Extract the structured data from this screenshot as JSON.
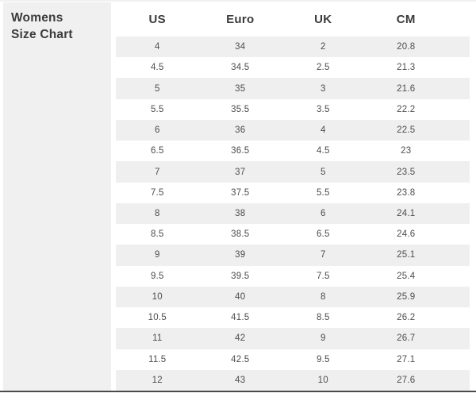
{
  "page": {
    "title_line1": "Womens",
    "title_line2": "Size Chart"
  },
  "chart_data": {
    "type": "table",
    "title": "Womens Size Chart",
    "columns": [
      "US",
      "Euro",
      "UK",
      "CM"
    ],
    "rows": [
      [
        "4",
        "34",
        "2",
        "20.8"
      ],
      [
        "4.5",
        "34.5",
        "2.5",
        "21.3"
      ],
      [
        "5",
        "35",
        "3",
        "21.6"
      ],
      [
        "5.5",
        "35.5",
        "3.5",
        "22.2"
      ],
      [
        "6",
        "36",
        "4",
        "22.5"
      ],
      [
        "6.5",
        "36.5",
        "4.5",
        "23"
      ],
      [
        "7",
        "37",
        "5",
        "23.5"
      ],
      [
        "7.5",
        "37.5",
        "5.5",
        "23.8"
      ],
      [
        "8",
        "38",
        "6",
        "24.1"
      ],
      [
        "8.5",
        "38.5",
        "6.5",
        "24.6"
      ],
      [
        "9",
        "39",
        "7",
        "25.1"
      ],
      [
        "9.5",
        "39.5",
        "7.5",
        "25.4"
      ],
      [
        "10",
        "40",
        "8",
        "25.9"
      ],
      [
        "10.5",
        "41.5",
        "8.5",
        "26.2"
      ],
      [
        "11",
        "42",
        "9",
        "26.7"
      ],
      [
        "11.5",
        "42.5",
        "9.5",
        "27.1"
      ],
      [
        "12",
        "43",
        "10",
        "27.6"
      ]
    ],
    "layout": {
      "row_stripe_pattern": "odd-rows-shaded",
      "header_row_background": "#ffffff"
    }
  },
  "colors": {
    "sidebar_background": "#f0f0f0",
    "row_stripe": "#efefef",
    "header_text": "#3b3b3b",
    "cell_text": "#4d4d4d",
    "bottom_rule": "#4a4a4a"
  }
}
